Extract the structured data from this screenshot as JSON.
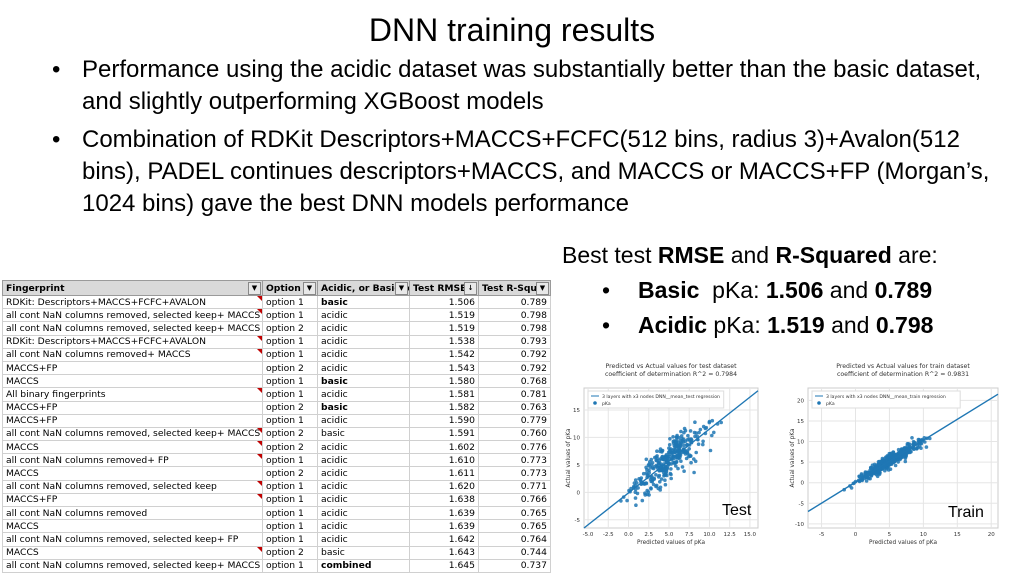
{
  "slide": {
    "title": "DNN training results",
    "bullets": [
      "Performance using the acidic dataset was substantially better than the basic dataset, and slightly outperforming XGBoost models",
      "Combination of RDKit Descriptors+MACCS+FCFC(512 bins, radius 3)+Avalon(512 bins), PADEL continues descriptors+MACCS, and MACCS or MACCS+FP (Morgan’s, 1024 bins) gave the best DNN models performance"
    ],
    "best": {
      "intro_a": "Best test ",
      "intro_b": "RMSE",
      "intro_c": " and ",
      "intro_d": "R-Squared",
      "intro_e": " are:",
      "basic_a": "Basic",
      "basic_b": "  pKa: ",
      "basic_c": "1.506",
      "basic_d": " and ",
      "basic_e": "0.789",
      "acidic_a": "Acidic",
      "acidic_b": " pKa: ",
      "acidic_c": "1.519",
      "acidic_d": " and ",
      "acidic_e": "0.798"
    }
  },
  "table": {
    "headers": [
      "Fingerprint",
      "Option",
      "Acidic, or Basic pK",
      "Test RMSE",
      "Test R-Squar"
    ],
    "rows": [
      [
        "RDKit: Descriptors+MACCS+FCFC+AVALON",
        "option 1",
        "basic",
        "1.506",
        "0.789"
      ],
      [
        "all cont NaN columns removed, selected keep+ MACCS",
        "option 1",
        "acidic",
        "1.519",
        "0.798"
      ],
      [
        "all cont NaN columns removed, selected keep+ MACCS",
        "option 2",
        "acidic",
        "1.519",
        "0.798"
      ],
      [
        "RDKit: Descriptors+MACCS+FCFC+AVALON",
        "option 1",
        "acidic",
        "1.538",
        "0.793"
      ],
      [
        "all cont NaN columns removed+ MACCS",
        "option 1",
        "acidic",
        "1.542",
        "0.792"
      ],
      [
        "MACCS+FP",
        "option 2",
        "acidic",
        "1.543",
        "0.792"
      ],
      [
        "MACCS",
        "option 1",
        "basic",
        "1.580",
        "0.768"
      ],
      [
        "All binary fingerprints",
        "option 1",
        "acidic",
        "1.581",
        "0.781"
      ],
      [
        "MACCS+FP",
        "option 2",
        "basic",
        "1.582",
        "0.763"
      ],
      [
        "MACCS+FP",
        "option 1",
        "acidic",
        "1.590",
        "0.779"
      ],
      [
        "all cont NaN columns removed, selected keep+ MACCS",
        "option 2",
        "basic",
        "1.591",
        "0.760"
      ],
      [
        "MACCS",
        "option 2",
        "acidic",
        "1.602",
        "0.776"
      ],
      [
        "all cont NaN columns removed+ FP",
        "option 1",
        "acidic",
        "1.610",
        "0.773"
      ],
      [
        "MACCS",
        "option 2",
        "acidic",
        "1.611",
        "0.773"
      ],
      [
        "all cont NaN columns removed, selected keep",
        "option 1",
        "acidic",
        "1.620",
        "0.771"
      ],
      [
        "MACCS+FP",
        "option 1",
        "acidic",
        "1.638",
        "0.766"
      ],
      [
        "all cont NaN columns removed",
        "option 1",
        "acidic",
        "1.639",
        "0.765"
      ],
      [
        "MACCS",
        "option 1",
        "acidic",
        "1.639",
        "0.765"
      ],
      [
        "all cont NaN columns removed, selected keep+ FP",
        "option 1",
        "acidic",
        "1.642",
        "0.764"
      ],
      [
        "MACCS",
        "option 2",
        "basic",
        "1.643",
        "0.744"
      ],
      [
        "all cont NaN columns removed, selected keep+ MACCS",
        "option 1",
        "combined",
        "1.645",
        "0.737"
      ]
    ],
    "bold_rows_col3": [
      0,
      6,
      8,
      20
    ],
    "marked_rows_col1": [
      0,
      1,
      3,
      4,
      7,
      10,
      11,
      12,
      14,
      15,
      19
    ]
  },
  "chart_data": [
    {
      "type": "scatter",
      "title": "Predicted vs Actual values for test dataset",
      "subtitle": "coefficient of determination R^2 = 0.7984",
      "xlabel": "Predicted values of pKa",
      "ylabel": "Actual values of pKa",
      "legend": [
        "3 layers with x3 nodes DNN__mean_test regression",
        "pKa"
      ],
      "legend_placement": "top-left",
      "xlim": [
        -5.5,
        16
      ],
      "ylim": [
        -6.5,
        19
      ],
      "x_ticks": [
        "-5.0",
        "-2.5",
        "0.0",
        "2.5",
        "5.0",
        "7.5",
        "10.0",
        "12.5",
        "15.0"
      ],
      "y_ticks": [
        "-5",
        "0",
        "5",
        "10",
        "15"
      ],
      "regression_line": {
        "x": [
          -5.5,
          16
        ],
        "y": [
          -6.5,
          18.5
        ]
      },
      "corner_label": "Test",
      "grid": true
    },
    {
      "type": "scatter",
      "title": "Predicted vs Actual values for train dataset",
      "subtitle": "coefficient of determination R^2 = 0.9831",
      "xlabel": "Predicted values of pKa",
      "ylabel": "Actual values of pKa",
      "legend": [
        "3 layers with x3 nodes DNN__mean_train regression",
        "pKa"
      ],
      "legend_placement": "top-left",
      "xlim": [
        -7,
        21
      ],
      "ylim": [
        -11,
        23
      ],
      "x_ticks": [
        "-5",
        "0",
        "5",
        "10",
        "15",
        "20"
      ],
      "y_ticks": [
        "-10",
        "-5",
        "0",
        "5",
        "10",
        "15",
        "20"
      ],
      "regression_line": {
        "x": [
          -7,
          21
        ],
        "y": [
          -7,
          21.5
        ]
      },
      "corner_label": "Train",
      "grid": true
    }
  ],
  "colors": {
    "point": "#1f77b4",
    "line": "#1f77b4",
    "grid": "#e5e5e5",
    "header_bg": "#d9d9d9"
  }
}
